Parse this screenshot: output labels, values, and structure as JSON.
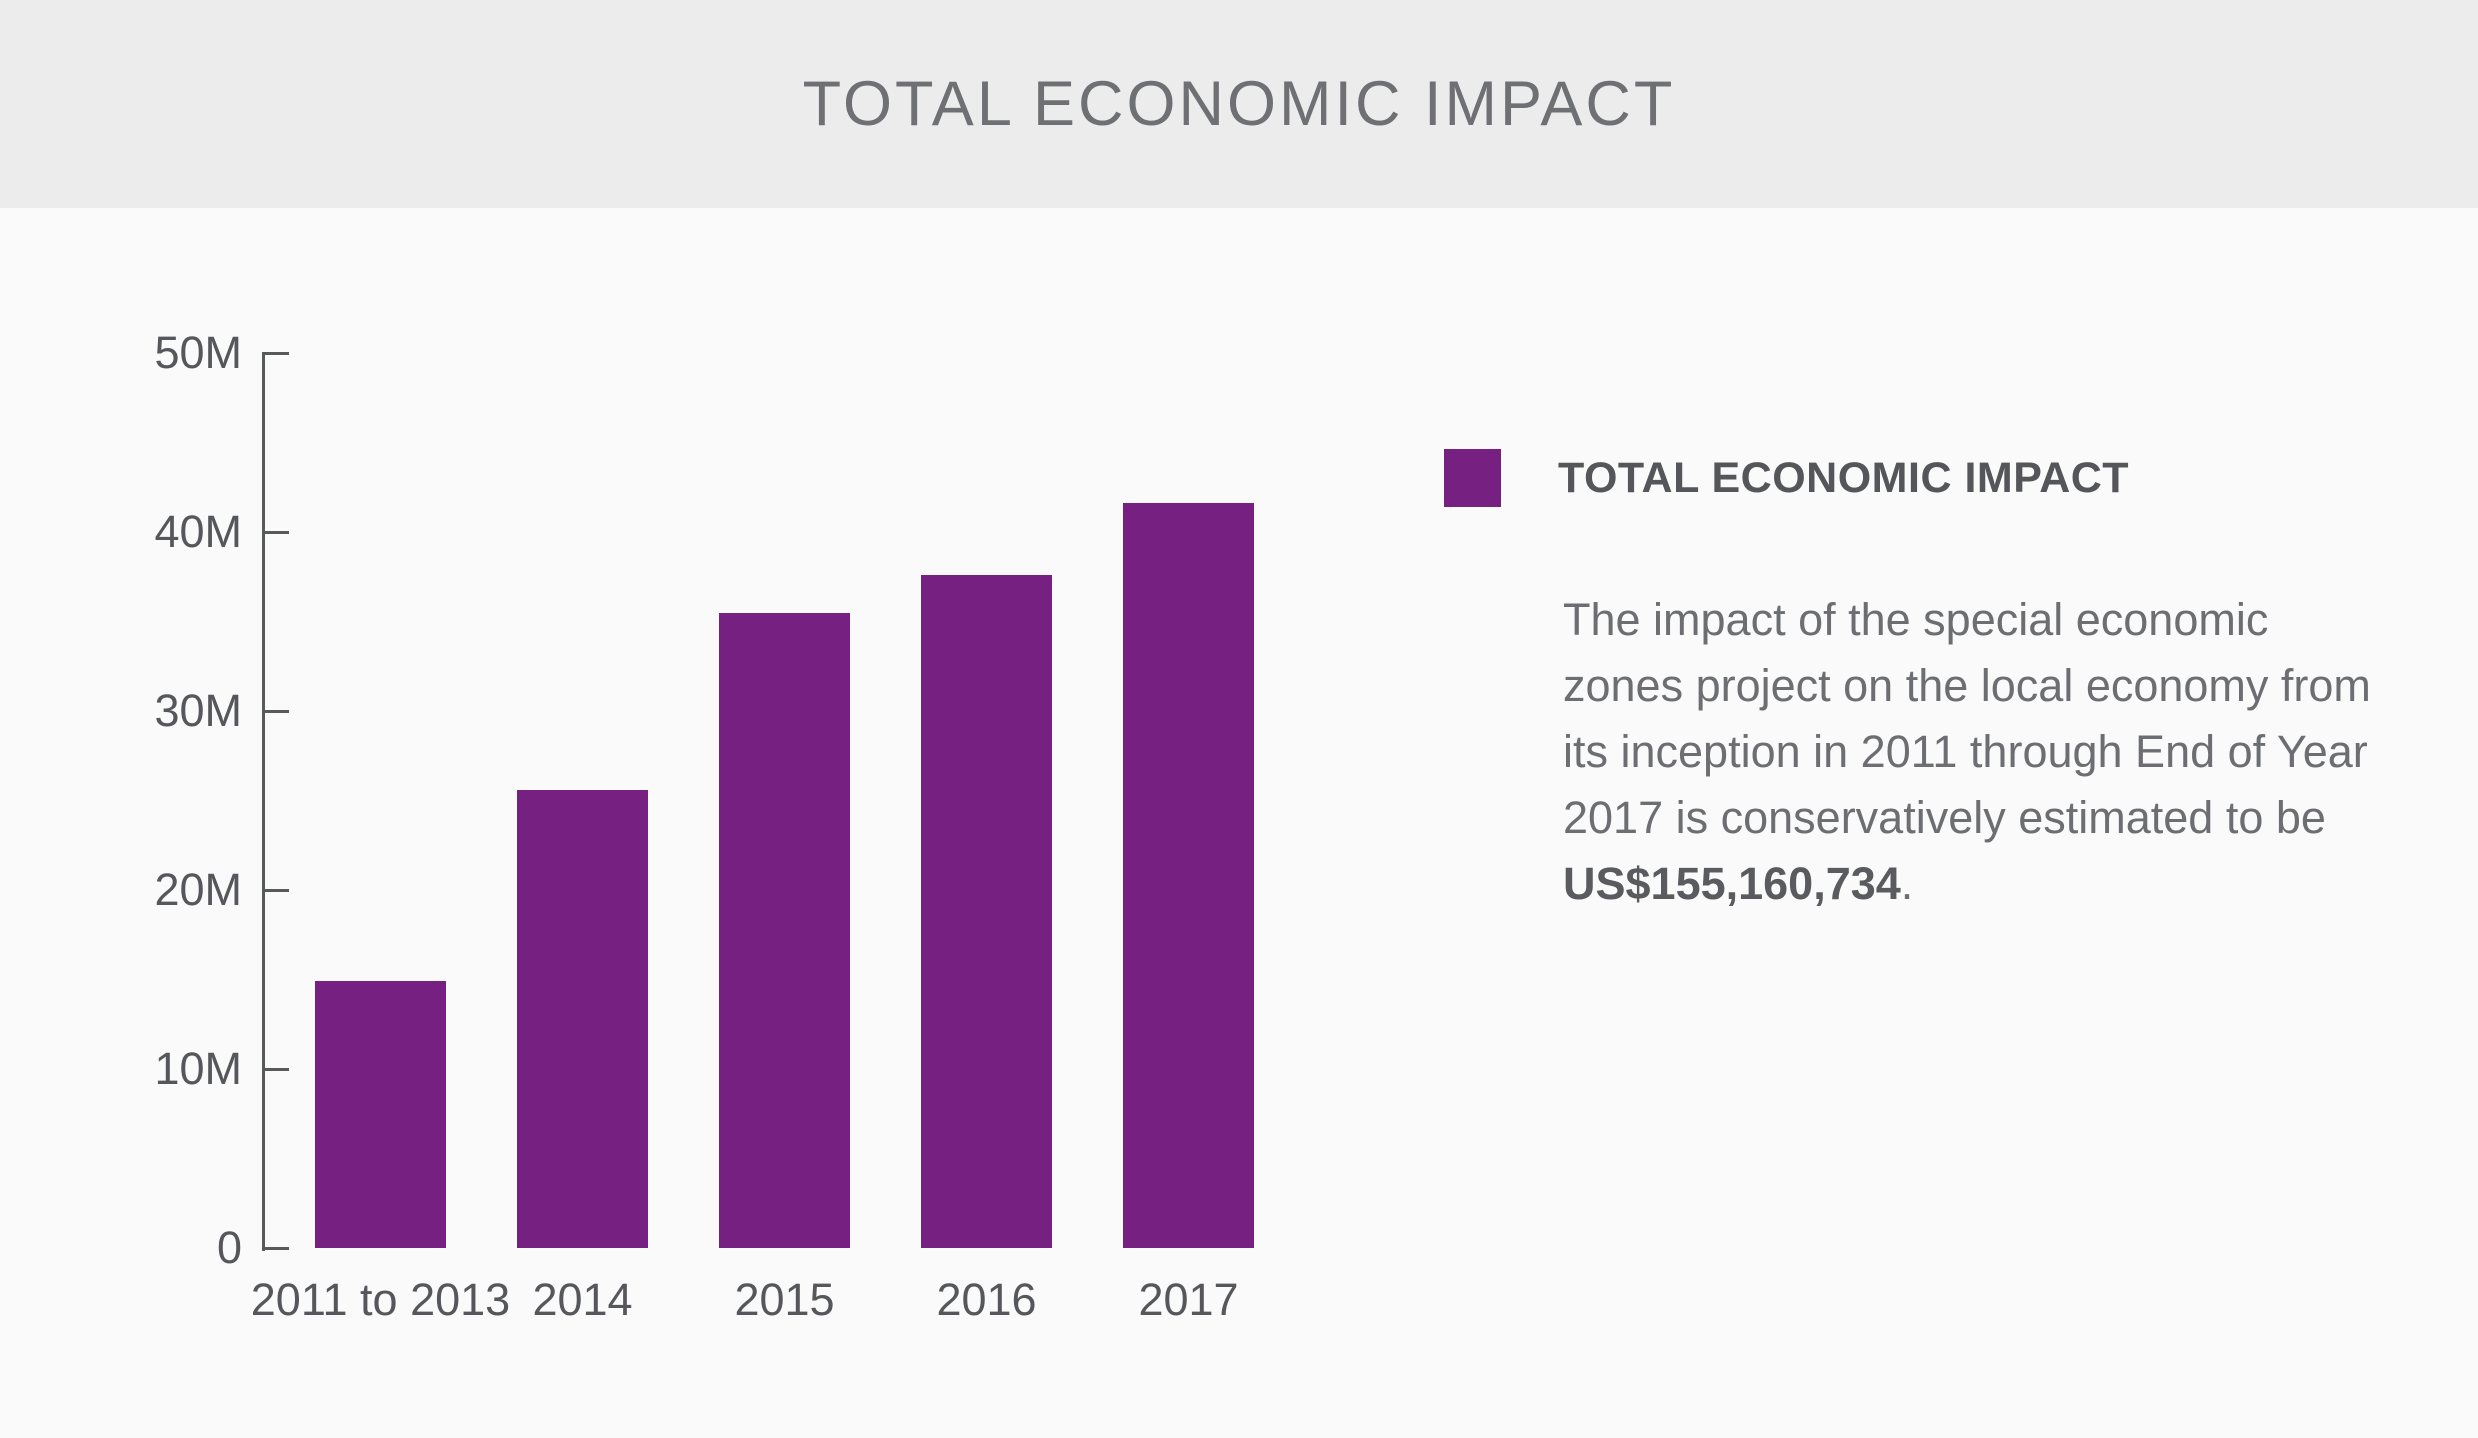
{
  "header": {
    "title": "TOTAL ECONOMIC IMPACT"
  },
  "colors": {
    "header_bg": "#ECECEC",
    "body_bg": "#FAFAFA",
    "bar_purple": "#762181",
    "axis_gray": "#58595B",
    "label_gray": "#55575B",
    "paragraph_gray": "#6D6E71"
  },
  "chart_data": {
    "type": "bar",
    "title": "TOTAL ECONOMIC IMPACT",
    "categories": [
      "2011 to 2013",
      "2014",
      "2015",
      "2016",
      "2017"
    ],
    "values": [
      14900000,
      25600000,
      35500000,
      37600000,
      41600000
    ],
    "value_unit": "USD",
    "xlabel": "",
    "ylabel": "",
    "ylim": [
      0,
      50000000
    ],
    "ytick_values": [
      0,
      10000000,
      20000000,
      30000000,
      40000000,
      50000000
    ],
    "ytick_labels": [
      "0",
      "10M",
      "20M",
      "30M",
      "40M",
      "50M"
    ],
    "grid": false,
    "bar_color": "#762181",
    "legend_position": "right",
    "stated_total": "US$155,160,734"
  },
  "legend": {
    "swatch_color": "#762181",
    "title": "TOTAL ECONOMIC IMPACT",
    "description_before": "The impact of the special economic\nzones project on the local economy from\nits inception in 2011 through End of Year\n2017 is conservatively estimated to be\n",
    "description_amount": "US$155,160,734",
    "description_after": "."
  }
}
